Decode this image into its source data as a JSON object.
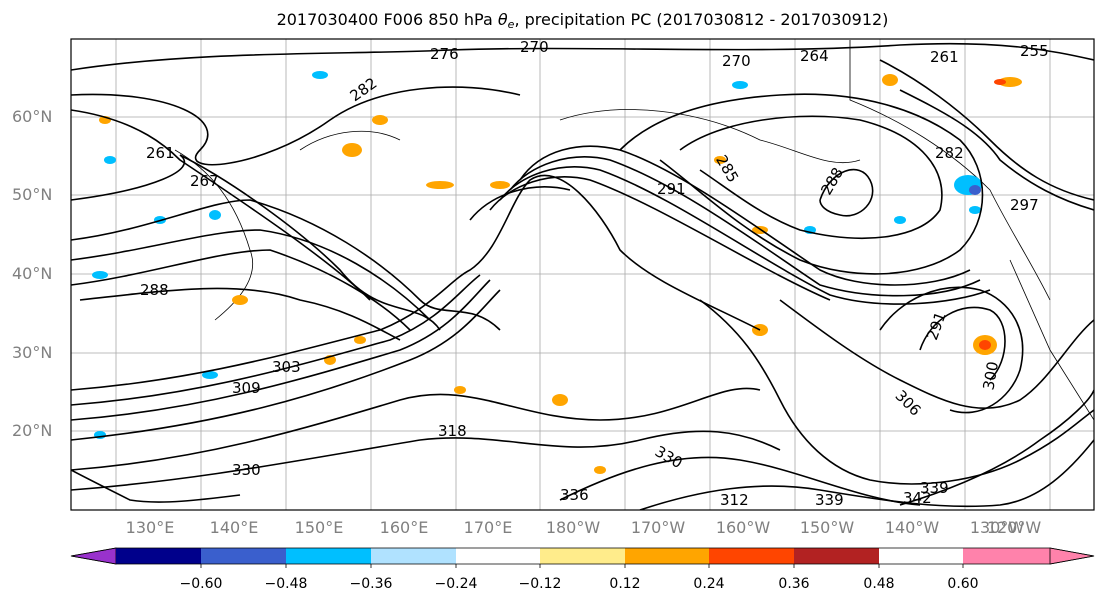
{
  "title": {
    "prefix": "2017030400 F006 850 hPa ",
    "theta": "θ",
    "sub": "e",
    "suffix": ", precipitation PC (2017030812 - 2017030912)"
  },
  "lat_labels": [
    "60°N",
    "50°N",
    "40°N",
    "30°N",
    "20°N"
  ],
  "lon_labels": [
    "130°E",
    "140°E",
    "150°E",
    "160°E",
    "170°E",
    "180°W",
    "170°W",
    "160°W",
    "150°W",
    "140°W",
    "130°W",
    "120°W"
  ],
  "colorbar": {
    "colors": [
      "#9932CC",
      "#00008B",
      "#3A5FCD",
      "#00BFFF",
      "#B0E2FF",
      "#FFFFFF",
      "#FFEC8B",
      "#FFA500",
      "#FF4500",
      "#B22222",
      "#FF82AB"
    ],
    "ticks": [
      "−0.60",
      "−0.48",
      "−0.36",
      "−0.24",
      "−0.12",
      "0.12",
      "0.24",
      "0.36",
      "0.48",
      "0.60"
    ]
  },
  "contour_labels": [
    "276",
    "270",
    "270",
    "264",
    "261",
    "255",
    "282",
    "261",
    "267",
    "291",
    "285",
    "282",
    "288",
    "297",
    "288",
    "291",
    "303",
    "300",
    "309",
    "306",
    "318",
    "330",
    "342",
    "339",
    "339",
    "312",
    "330",
    "336"
  ]
}
